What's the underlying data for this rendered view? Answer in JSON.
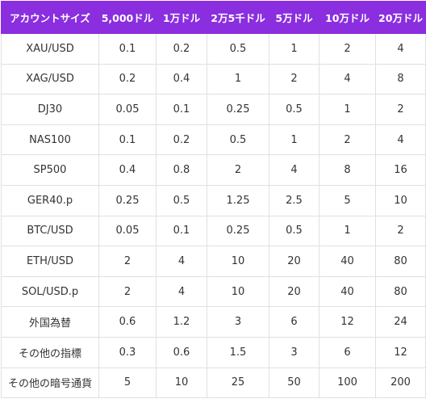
{
  "colors": {
    "header_bg": "#8a2ee0",
    "header_text": "#ffffff",
    "cell_text": "#333333",
    "border": "#e0e0e0"
  },
  "table": {
    "headers": [
      "アカウントサイズ",
      "5,000ドル",
      "1万ドル",
      "2万5千ドル",
      "5万ドル",
      "10万ドル",
      "20万ドル"
    ],
    "rows": [
      [
        "XAU/USD",
        "0.1",
        "0.2",
        "0.5",
        "1",
        "2",
        "4"
      ],
      [
        "XAG/USD",
        "0.2",
        "0.4",
        "1",
        "2",
        "4",
        "8"
      ],
      [
        "DJ30",
        "0.05",
        "0.1",
        "0.25",
        "0.5",
        "1",
        "2"
      ],
      [
        "NAS100",
        "0.1",
        "0.2",
        "0.5",
        "1",
        "2",
        "4"
      ],
      [
        "SP500",
        "0.4",
        "0.8",
        "2",
        "4",
        "8",
        "16"
      ],
      [
        "GER40.p",
        "0.25",
        "0.5",
        "1.25",
        "2.5",
        "5",
        "10"
      ],
      [
        "BTC/USD",
        "0.05",
        "0.1",
        "0.25",
        "0.5",
        "1",
        "2"
      ],
      [
        "ETH/USD",
        "2",
        "4",
        "10",
        "20",
        "40",
        "80"
      ],
      [
        "SOL/USD.p",
        "2",
        "4",
        "10",
        "20",
        "40",
        "80"
      ],
      [
        "外国為替",
        "0.6",
        "1.2",
        "3",
        "6",
        "12",
        "24"
      ],
      [
        "その他の指標",
        "0.3",
        "0.6",
        "1.5",
        "3",
        "6",
        "12"
      ],
      [
        "その他の暗号通貨",
        "5",
        "10",
        "25",
        "50",
        "100",
        "200"
      ]
    ]
  }
}
